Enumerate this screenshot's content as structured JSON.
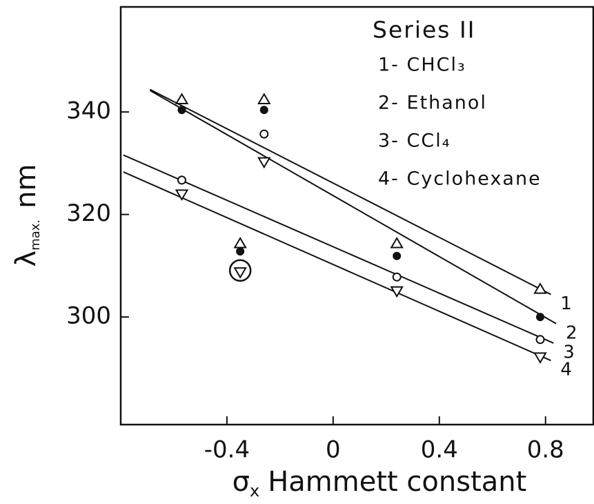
{
  "chart_data": {
    "type": "scatter",
    "legend_title": "Series II",
    "x_label": {
      "symbol": "σ",
      "subscript": "x",
      "text": "Hammett constant"
    },
    "y_label": {
      "symbol": "λ",
      "subscript": "max.",
      "unit": "nm"
    },
    "x": [
      -0.57,
      -0.35,
      -0.26,
      0.24,
      0.78
    ],
    "series": [
      {
        "name": "1- CHCl₃",
        "marker": "triangle",
        "color": "#111111",
        "values": [
          342.4,
          314.3,
          342.4,
          314.3,
          305.4
        ]
      },
      {
        "name": "2- Ethanol",
        "marker": "dot",
        "color": "#111111",
        "values": [
          340.4,
          312.8,
          340.4,
          311.9,
          300.0
        ]
      },
      {
        "name": "3- CCl₄",
        "marker": "circle",
        "color": "#111111",
        "values": [
          326.7,
          null,
          335.7,
          307.8,
          295.6
        ]
      },
      {
        "name": "4- Cyclohexane",
        "marker": "triangle-down",
        "color": "#111111",
        "values": [
          324.0,
          308.8,
          330.3,
          305.1,
          292.2
        ],
        "highlight": 1
      }
    ],
    "lines": [
      {
        "label": "1",
        "x": [
          -0.69,
          0.82
        ],
        "y": [
          344.4,
          304.4
        ]
      },
      {
        "label": "2",
        "x": [
          -0.69,
          0.84
        ],
        "y": [
          344.2,
          298.7
        ]
      },
      {
        "label": "3",
        "x": [
          -0.79,
          0.83
        ],
        "y": [
          331.6,
          294.9
        ]
      },
      {
        "label": "4",
        "x": [
          -0.79,
          0.82
        ],
        "y": [
          328.3,
          291.5
        ]
      }
    ],
    "xlim": [
      -0.8,
      0.98
    ],
    "ylim": [
      279,
      360.5
    ],
    "xticks": [
      -0.4,
      0,
      0.4,
      0.8
    ],
    "yticks": [
      300,
      320,
      340
    ]
  }
}
